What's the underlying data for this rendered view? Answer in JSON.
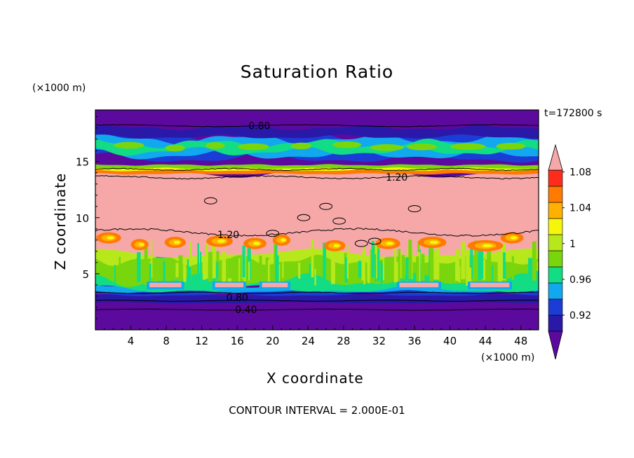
{
  "chart_data": {
    "type": "heatmap",
    "title": "Saturation Ratio",
    "xlabel": "X coordinate",
    "ylabel": "Z coordinate",
    "x_unit_label": "(×1000 m)",
    "y_unit_label": "(×1000 m)",
    "time_label": "t=172800 s",
    "footer": "CONTOUR INTERVAL = 2.000E-01",
    "xlim": [
      0,
      50
    ],
    "ylim": [
      0,
      19.6
    ],
    "x_ticks": [
      4,
      8,
      12,
      16,
      20,
      24,
      28,
      32,
      36,
      40,
      44,
      48
    ],
    "x_tick_labels": [
      "4",
      "8",
      "12",
      "16",
      "20",
      "24",
      "28",
      "32",
      "36",
      "40",
      "44",
      "48"
    ],
    "y_ticks": [
      5,
      10,
      15
    ],
    "y_tick_labels": [
      "5",
      "10",
      "15"
    ],
    "colorbar": {
      "levels": [
        0.92,
        0.94,
        0.96,
        0.98,
        1.0,
        1.02,
        1.04,
        1.06,
        1.08,
        1.1
      ],
      "labels": [
        "0.92",
        "0.96",
        "1",
        "1.04",
        "1.08"
      ],
      "label_values": [
        0.92,
        0.96,
        1.0,
        1.04,
        1.08
      ],
      "colors": [
        "#5c0a9e",
        "#2a18a8",
        "#1c3cd6",
        "#11a8ee",
        "#12dd84",
        "#7ad60c",
        "#b6e81c",
        "#f6f60c",
        "#ffb000",
        "#ff7a00",
        "#ff2c1c",
        "#f6a8a8"
      ],
      "extend": "both"
    },
    "contour_labels": [
      {
        "text": "0.80",
        "x": 18.5,
        "z": 18.2
      },
      {
        "text": "1.20",
        "x": 34.0,
        "z": 13.6
      },
      {
        "text": "1.20",
        "x": 15.0,
        "z": 8.5
      },
      {
        "text": "0.80",
        "x": 16.0,
        "z": 2.9
      },
      {
        "text": "0.40",
        "x": 17.0,
        "z": 1.8
      }
    ],
    "bands": [
      {
        "z0": 0.0,
        "z1": 3.3,
        "value": "<0.92"
      },
      {
        "z0": 3.3,
        "z1": 3.8,
        "value": "0.96"
      },
      {
        "z0": 3.8,
        "z1": 6.4,
        "value": "0.98-1.04"
      },
      {
        "z0": 6.4,
        "z1": 8.5,
        "value": "1.0-1.10"
      },
      {
        "z0": 8.5,
        "z1": 14.0,
        "value": ">1.10"
      },
      {
        "z0": 14.0,
        "z1": 14.6,
        "value": "1.04-1.10"
      },
      {
        "z0": 14.6,
        "z1": 15.4,
        "value": "<0.92"
      },
      {
        "z0": 15.4,
        "z1": 17.2,
        "value": "0.94-1.02"
      },
      {
        "z0": 17.2,
        "z1": 19.6,
        "value": "<0.92"
      }
    ]
  }
}
